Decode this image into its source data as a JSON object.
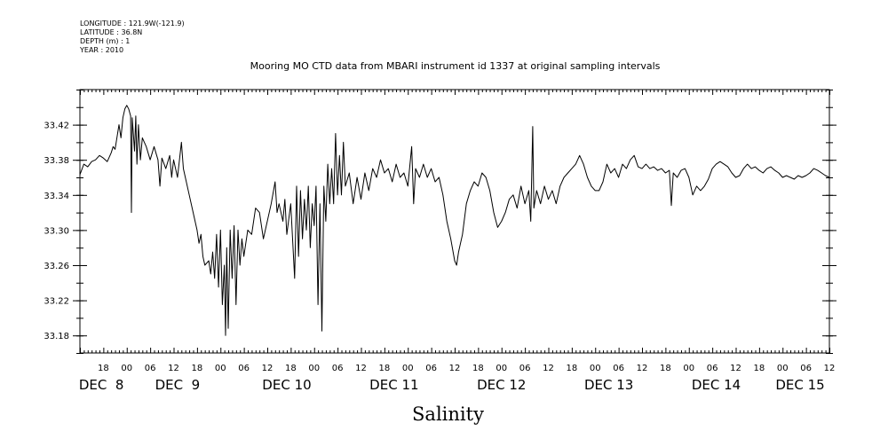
{
  "header": {
    "longitude": "LONGITUDE : 121.9W(-121.9)",
    "latitude": "LATITUDE : 36.8N",
    "depth": "DEPTH (m) : 1",
    "year": "YEAR : 2010"
  },
  "chart_data": {
    "type": "line",
    "title": "Mooring MO CTD data from MBARI instrument id 1337 at original sampling intervals",
    "xlabel": "",
    "ylabel": "Salinity",
    "x_unit": "hours since DEC 7 12:00, 2010",
    "xlim": [
      0,
      192
    ],
    "ylim": [
      33.16,
      33.46
    ],
    "yticks": [
      33.18,
      33.22,
      33.26,
      33.3,
      33.34,
      33.38,
      33.42
    ],
    "ytick_labels": [
      "33.18",
      "33.22",
      "33.26",
      "33.30",
      "33.34",
      "33.38",
      "33.42"
    ],
    "hour_ticks": [
      {
        "x": 6,
        "label": "18"
      },
      {
        "x": 12,
        "label": "00"
      },
      {
        "x": 18,
        "label": "06"
      },
      {
        "x": 24,
        "label": "12"
      },
      {
        "x": 30,
        "label": "18"
      },
      {
        "x": 36,
        "label": "00"
      },
      {
        "x": 42,
        "label": "06"
      },
      {
        "x": 48,
        "label": "12"
      },
      {
        "x": 54,
        "label": "18"
      },
      {
        "x": 60,
        "label": "00"
      },
      {
        "x": 66,
        "label": "06"
      },
      {
        "x": 72,
        "label": "12"
      },
      {
        "x": 78,
        "label": "18"
      },
      {
        "x": 84,
        "label": "00"
      },
      {
        "x": 90,
        "label": "06"
      },
      {
        "x": 96,
        "label": "12"
      },
      {
        "x": 102,
        "label": "18"
      },
      {
        "x": 108,
        "label": "00"
      },
      {
        "x": 114,
        "label": "06"
      },
      {
        "x": 120,
        "label": "12"
      },
      {
        "x": 126,
        "label": "18"
      },
      {
        "x": 132,
        "label": "00"
      },
      {
        "x": 138,
        "label": "06"
      },
      {
        "x": 144,
        "label": "12"
      },
      {
        "x": 150,
        "label": "18"
      },
      {
        "x": 156,
        "label": "00"
      },
      {
        "x": 162,
        "label": "06"
      },
      {
        "x": 168,
        "label": "12"
      },
      {
        "x": 174,
        "label": "18"
      },
      {
        "x": 180,
        "label": "00"
      },
      {
        "x": 186,
        "label": "06"
      },
      {
        "x": 192,
        "label": "12"
      }
    ],
    "date_labels": [
      {
        "x": 5.5,
        "label": "DEC  8"
      },
      {
        "x": 25,
        "label": "DEC  9"
      },
      {
        "x": 53,
        "label": "DEC 10"
      },
      {
        "x": 80.5,
        "label": "DEC 11"
      },
      {
        "x": 108,
        "label": "DEC 12"
      },
      {
        "x": 135.5,
        "label": "DEC 13"
      },
      {
        "x": 163,
        "label": "DEC 14"
      },
      {
        "x": 184.5,
        "label": "DEC 15"
      }
    ],
    "series": [
      {
        "points": [
          [
            0,
            33.363
          ],
          [
            1,
            33.375
          ],
          [
            2,
            33.372
          ],
          [
            3,
            33.378
          ],
          [
            4,
            33.38
          ],
          [
            5,
            33.385
          ],
          [
            6,
            33.382
          ],
          [
            7,
            33.378
          ],
          [
            8,
            33.388
          ],
          [
            8.5,
            33.395
          ],
          [
            9,
            33.392
          ],
          [
            10,
            33.42
          ],
          [
            10.5,
            33.405
          ],
          [
            11,
            33.428
          ],
          [
            11.5,
            33.438
          ],
          [
            12,
            33.442
          ],
          [
            12.5,
            33.438
          ],
          [
            13,
            33.43
          ],
          [
            13.2,
            33.32
          ],
          [
            13.4,
            33.428
          ],
          [
            14,
            33.39
          ],
          [
            14.3,
            33.43
          ],
          [
            14.6,
            33.375
          ],
          [
            15,
            33.42
          ],
          [
            15.5,
            33.38
          ],
          [
            16,
            33.405
          ],
          [
            17,
            33.395
          ],
          [
            18,
            33.38
          ],
          [
            19,
            33.395
          ],
          [
            20,
            33.38
          ],
          [
            20.5,
            33.35
          ],
          [
            21,
            33.382
          ],
          [
            22,
            33.37
          ],
          [
            23,
            33.385
          ],
          [
            23.5,
            33.36
          ],
          [
            24,
            33.38
          ],
          [
            25,
            33.36
          ],
          [
            26,
            33.4
          ],
          [
            26.5,
            33.37
          ],
          [
            27,
            33.36
          ],
          [
            28,
            33.34
          ],
          [
            29,
            33.32
          ],
          [
            30,
            33.3
          ],
          [
            30.5,
            33.285
          ],
          [
            31,
            33.295
          ],
          [
            31.5,
            33.27
          ],
          [
            32,
            33.26
          ],
          [
            33,
            33.265
          ],
          [
            33.5,
            33.25
          ],
          [
            34,
            33.275
          ],
          [
            34.5,
            33.245
          ],
          [
            35,
            33.295
          ],
          [
            35.5,
            33.235
          ],
          [
            36,
            33.3
          ],
          [
            36.5,
            33.215
          ],
          [
            37,
            33.26
          ],
          [
            37.3,
            33.18
          ],
          [
            37.6,
            33.28
          ],
          [
            38,
            33.188
          ],
          [
            38.5,
            33.3
          ],
          [
            39,
            33.245
          ],
          [
            39.5,
            33.305
          ],
          [
            40,
            33.215
          ],
          [
            40.5,
            33.3
          ],
          [
            41,
            33.26
          ],
          [
            41.5,
            33.29
          ],
          [
            42,
            33.27
          ],
          [
            43,
            33.3
          ],
          [
            44,
            33.295
          ],
          [
            45,
            33.325
          ],
          [
            46,
            33.32
          ],
          [
            47,
            33.29
          ],
          [
            48,
            33.31
          ],
          [
            49,
            33.33
          ],
          [
            50,
            33.355
          ],
          [
            50.5,
            33.32
          ],
          [
            51,
            33.33
          ],
          [
            52,
            33.31
          ],
          [
            52.5,
            33.335
          ],
          [
            53,
            33.295
          ],
          [
            54,
            33.33
          ],
          [
            55,
            33.245
          ],
          [
            55.5,
            33.35
          ],
          [
            56,
            33.27
          ],
          [
            56.5,
            33.345
          ],
          [
            57,
            33.29
          ],
          [
            57.5,
            33.335
          ],
          [
            58,
            33.3
          ],
          [
            58.5,
            33.35
          ],
          [
            59,
            33.28
          ],
          [
            59.5,
            33.33
          ],
          [
            60,
            33.305
          ],
          [
            60.5,
            33.35
          ],
          [
            61,
            33.215
          ],
          [
            61.5,
            33.33
          ],
          [
            62,
            33.185
          ],
          [
            62.5,
            33.35
          ],
          [
            63,
            33.31
          ],
          [
            63.5,
            33.375
          ],
          [
            64,
            33.33
          ],
          [
            64.5,
            33.37
          ],
          [
            65,
            33.33
          ],
          [
            65.5,
            33.41
          ],
          [
            66,
            33.34
          ],
          [
            66.5,
            33.385
          ],
          [
            67,
            33.34
          ],
          [
            67.5,
            33.4
          ],
          [
            68,
            33.35
          ],
          [
            69,
            33.365
          ],
          [
            70,
            33.33
          ],
          [
            71,
            33.36
          ],
          [
            72,
            33.335
          ],
          [
            73,
            33.365
          ],
          [
            74,
            33.345
          ],
          [
            75,
            33.37
          ],
          [
            76,
            33.36
          ],
          [
            77,
            33.38
          ],
          [
            78,
            33.365
          ],
          [
            79,
            33.37
          ],
          [
            80,
            33.355
          ],
          [
            81,
            33.375
          ],
          [
            82,
            33.36
          ],
          [
            83,
            33.365
          ],
          [
            84,
            33.35
          ],
          [
            85,
            33.395
          ],
          [
            85.5,
            33.33
          ],
          [
            86,
            33.37
          ],
          [
            87,
            33.36
          ],
          [
            88,
            33.375
          ],
          [
            89,
            33.36
          ],
          [
            90,
            33.37
          ],
          [
            91,
            33.355
          ],
          [
            92,
            33.36
          ],
          [
            93,
            33.34
          ],
          [
            94,
            33.31
          ],
          [
            95,
            33.29
          ],
          [
            96,
            33.265
          ],
          [
            96.5,
            33.26
          ],
          [
            97,
            33.275
          ],
          [
            98,
            33.295
          ],
          [
            99,
            33.33
          ],
          [
            100,
            33.345
          ],
          [
            101,
            33.355
          ],
          [
            102,
            33.35
          ],
          [
            103,
            33.365
          ],
          [
            104,
            33.36
          ],
          [
            105,
            33.345
          ],
          [
            106,
            33.32
          ],
          [
            107,
            33.303
          ],
          [
            108,
            33.31
          ],
          [
            109,
            33.32
          ],
          [
            110,
            33.335
          ],
          [
            111,
            33.34
          ],
          [
            112,
            33.325
          ],
          [
            113,
            33.35
          ],
          [
            114,
            33.33
          ],
          [
            115,
            33.345
          ],
          [
            115.5,
            33.31
          ],
          [
            116,
            33.418
          ],
          [
            116.3,
            33.325
          ],
          [
            117,
            33.345
          ],
          [
            118,
            33.33
          ],
          [
            119,
            33.35
          ],
          [
            120,
            33.335
          ],
          [
            121,
            33.345
          ],
          [
            122,
            33.33
          ],
          [
            123,
            33.35
          ],
          [
            124,
            33.36
          ],
          [
            125,
            33.365
          ],
          [
            126,
            33.37
          ],
          [
            127,
            33.375
          ],
          [
            128,
            33.385
          ],
          [
            129,
            33.375
          ],
          [
            130,
            33.36
          ],
          [
            131,
            33.35
          ],
          [
            132,
            33.345
          ],
          [
            133,
            33.345
          ],
          [
            134,
            33.355
          ],
          [
            135,
            33.375
          ],
          [
            136,
            33.365
          ],
          [
            137,
            33.37
          ],
          [
            138,
            33.36
          ],
          [
            139,
            33.375
          ],
          [
            140,
            33.37
          ],
          [
            141,
            33.38
          ],
          [
            142,
            33.385
          ],
          [
            143,
            33.372
          ],
          [
            144,
            33.37
          ],
          [
            145,
            33.375
          ],
          [
            146,
            33.37
          ],
          [
            147,
            33.372
          ],
          [
            148,
            33.368
          ],
          [
            149,
            33.37
          ],
          [
            150,
            33.365
          ],
          [
            151,
            33.368
          ],
          [
            151.5,
            33.328
          ],
          [
            152,
            33.365
          ],
          [
            153,
            33.36
          ],
          [
            154,
            33.368
          ],
          [
            155,
            33.37
          ],
          [
            156,
            33.36
          ],
          [
            157,
            33.34
          ],
          [
            158,
            33.35
          ],
          [
            159,
            33.345
          ],
          [
            160,
            33.35
          ],
          [
            161,
            33.358
          ],
          [
            162,
            33.37
          ],
          [
            163,
            33.375
          ],
          [
            164,
            33.378
          ],
          [
            165,
            33.375
          ],
          [
            166,
            33.372
          ],
          [
            167,
            33.365
          ],
          [
            168,
            33.36
          ],
          [
            169,
            33.362
          ],
          [
            170,
            33.37
          ],
          [
            171,
            33.375
          ],
          [
            172,
            33.37
          ],
          [
            173,
            33.372
          ],
          [
            174,
            33.368
          ],
          [
            175,
            33.365
          ],
          [
            176,
            33.37
          ],
          [
            177,
            33.372
          ],
          [
            178,
            33.368
          ],
          [
            179,
            33.365
          ],
          [
            180,
            33.36
          ],
          [
            181,
            33.362
          ],
          [
            182,
            33.36
          ],
          [
            183,
            33.358
          ],
          [
            184,
            33.362
          ],
          [
            185,
            33.36
          ],
          [
            186,
            33.362
          ],
          [
            187,
            33.365
          ],
          [
            188,
            33.37
          ],
          [
            189,
            33.368
          ],
          [
            190,
            33.365
          ],
          [
            191,
            33.362
          ],
          [
            192,
            33.36
          ]
        ]
      }
    ]
  }
}
